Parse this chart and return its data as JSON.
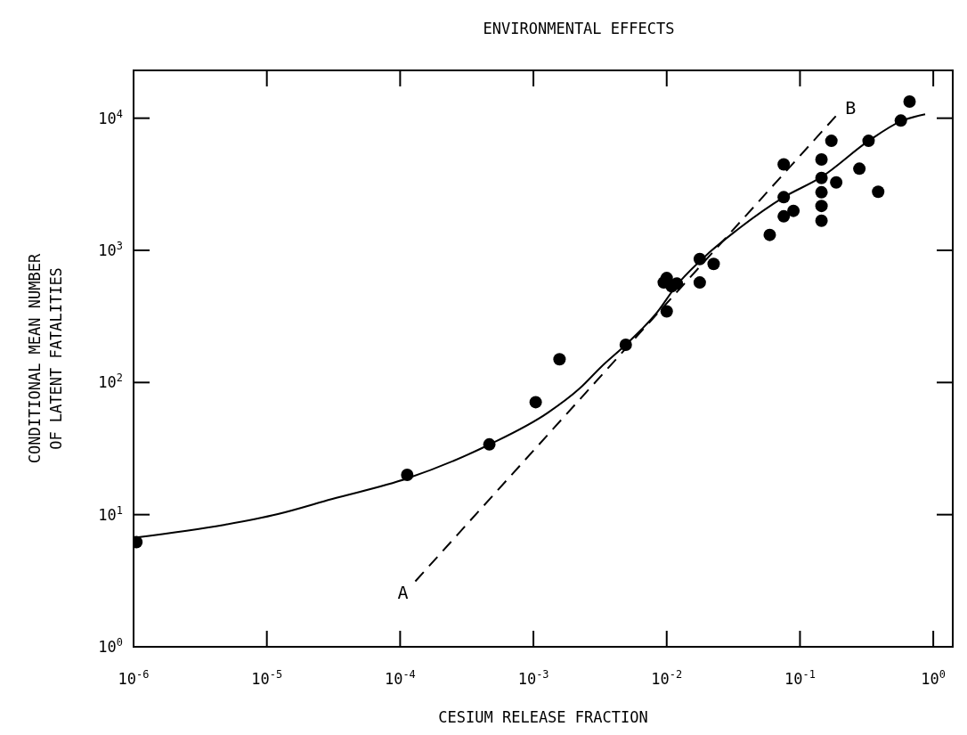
{
  "chart_data": {
    "type": "scatter",
    "title": "ENVIRONMENTAL EFFECTS",
    "xlabel": "CESIUM RELEASE FRACTION",
    "ylabel": "CONDITIONAL MEAN NUMBER\nOF LATENT FATALITIES",
    "log": "xy",
    "grid": false,
    "xlim": [
      1e-06,
      1.4
    ],
    "ylim": [
      1,
      23000
    ],
    "xticks": [
      {
        "value": 1e-06,
        "label": "10$^{-6}$"
      },
      {
        "value": 1e-05,
        "label": "10$^{-5}$"
      },
      {
        "value": 0.0001,
        "label": "10$^{-4}$"
      },
      {
        "value": 0.001,
        "label": "10$^{-3}$"
      },
      {
        "value": 0.01,
        "label": "10$^{-2}$"
      },
      {
        "value": 0.1,
        "label": "10$^{-1}$"
      },
      {
        "value": 1,
        "label": "10$^{0}$"
      }
    ],
    "yticks": [
      {
        "value": 1,
        "label": "10$^{0}$"
      },
      {
        "value": 10,
        "label": "10$^{1}$"
      },
      {
        "value": 100,
        "label": "10$^{2}$"
      },
      {
        "value": 1000,
        "label": "10$^{3}$"
      },
      {
        "value": 10000,
        "label": "10$^{4}$"
      }
    ],
    "series": [
      {
        "color": "#000000",
        "marker": "circle",
        "x": [
          1.05e-06,
          0.000113,
          0.000467,
          0.00104,
          0.00157,
          0.00493,
          0.0095,
          0.01,
          0.0119,
          0.0109,
          0.01,
          0.0177,
          0.0177,
          0.0225,
          0.0593,
          0.0755,
          0.0755,
          0.0755,
          0.0893,
          0.145,
          0.145,
          0.145,
          0.145,
          0.145,
          0.172,
          0.187,
          0.279,
          0.327,
          0.386,
          0.571,
          0.664
        ],
        "values": [
          6.2,
          20,
          34,
          71,
          150,
          193,
          571,
          617,
          561,
          534,
          345,
          860,
          571,
          789,
          1309,
          4475,
          2523,
          1808,
          1990,
          4874,
          3526,
          2749,
          2168,
          1676,
          6735,
          3266,
          4149,
          6735,
          2775,
          9590,
          13370
        ]
      },
      {
        "type": "line",
        "color": "#000000",
        "marker": "none",
        "line_style": "solid",
        "x": [
          1.02e-06,
          4.75e-06,
          1.21e-05,
          3.06e-05,
          0.000113,
          0.000467,
          0.00128,
          0.00223,
          0.00324,
          0.00493,
          0.00652,
          0.00822,
          0.0119,
          0.0209,
          0.0333,
          0.0755,
          0.145,
          0.327,
          0.571,
          0.869
        ],
        "values": [
          6.7,
          8.36,
          10.1,
          13.1,
          18.8,
          33.9,
          58.9,
          90.4,
          132,
          193,
          254,
          327,
          545,
          964,
          1413,
          2523,
          3589,
          6730,
          9484,
          10715
        ]
      },
      {
        "type": "line",
        "color": "#000000",
        "marker": "none",
        "line_style": "dashed",
        "x": [
          0.00013,
          0.187
        ],
        "values": [
          3.13,
          10440
        ]
      }
    ],
    "annotations": [
      {
        "text": "A",
        "x": 0.00013,
        "y": 3.13
      },
      {
        "text": "B",
        "x": 0.187,
        "y": 10440
      }
    ]
  }
}
